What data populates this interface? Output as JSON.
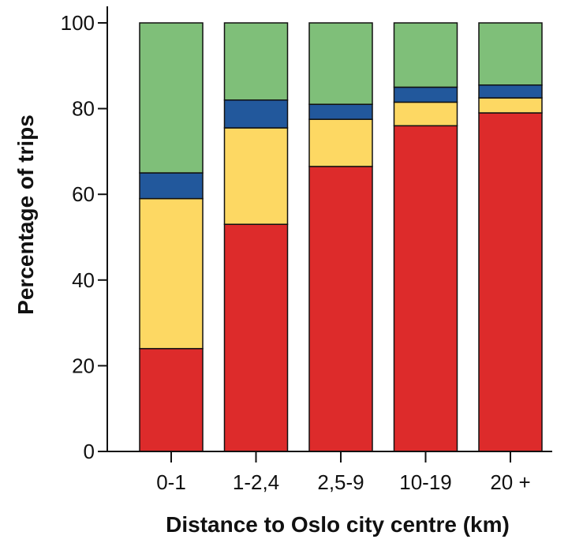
{
  "chart_data": {
    "type": "bar",
    "stacked": true,
    "title": "",
    "xlabel": "Distance to Oslo city centre (km)",
    "ylabel": "Percentage of trips",
    "ylim": [
      0,
      100
    ],
    "yticks": [
      0,
      20,
      40,
      60,
      80,
      100
    ],
    "grid": false,
    "legend": "none",
    "categories": [
      "0-1",
      "1-2,4",
      "2,5-9",
      "10-19",
      "20 +"
    ],
    "series": [
      {
        "color": "#dd2b2b",
        "values": [
          24,
          53,
          66.5,
          76,
          79
        ]
      },
      {
        "color": "#fdd863",
        "values": [
          35,
          22.5,
          11,
          5.5,
          3.5
        ]
      },
      {
        "color": "#22589c",
        "values": [
          6,
          6.5,
          3.5,
          3.5,
          3
        ]
      },
      {
        "color": "#7fbf79",
        "values": [
          35,
          18,
          19,
          15,
          14.5
        ]
      }
    ]
  }
}
